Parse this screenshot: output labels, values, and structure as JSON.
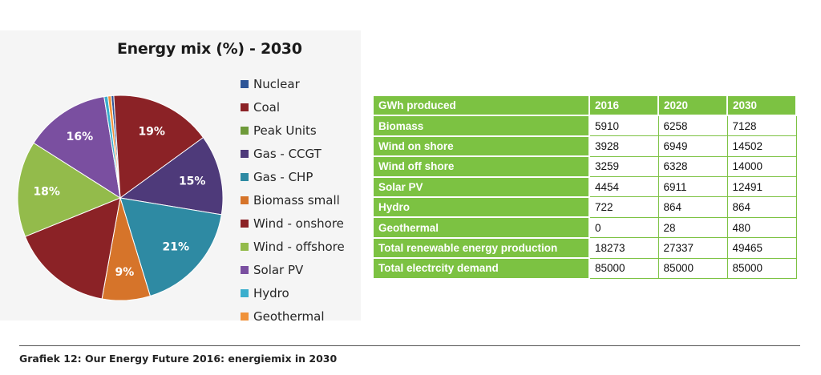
{
  "chart_data": [
    {
      "type": "pie",
      "title": "Energy mix (%) - 2030",
      "series": [
        {
          "name": "Nuclear",
          "value": 0.5,
          "color": "#2e5597",
          "label": ""
        },
        {
          "name": "Coal",
          "value": 19,
          "color": "#8b2226",
          "label": "19%"
        },
        {
          "name": "Peak Units",
          "value": 0,
          "color": "#6e9a3a",
          "label": ""
        },
        {
          "name": "Gas - CCGT",
          "value": 15,
          "color": "#4e3a7a",
          "label": "15%"
        },
        {
          "name": "Gas - CHP",
          "value": 21,
          "color": "#2e8aa3",
          "label": "21%"
        },
        {
          "name": "Biomass small",
          "value": 9,
          "color": "#d6742a",
          "label": "9%"
        },
        {
          "name": "Wind - onshore",
          "value": 19,
          "color": "#8b2226",
          "label": ""
        },
        {
          "name": "Wind - offshore",
          "value": 18,
          "color": "#93bb4b",
          "label": "18%"
        },
        {
          "name": "Solar PV",
          "value": 16,
          "color": "#7a4fa0",
          "label": "16%"
        },
        {
          "name": "Hydro",
          "value": 0.7,
          "color": "#3aaecd",
          "label": ""
        },
        {
          "name": "Geothermal",
          "value": 0.6,
          "color": "#f0923a",
          "label": ""
        }
      ],
      "legend_placement": "right"
    },
    {
      "type": "table",
      "columns": [
        "GWh produced",
        "2016",
        "2020",
        "2030"
      ],
      "rows": [
        [
          "Biomass",
          "5910",
          "6258",
          "7128"
        ],
        [
          "Wind on shore",
          "3928",
          "6949",
          "14502"
        ],
        [
          "Wind off shore",
          "3259",
          "6328",
          "14000"
        ],
        [
          "Solar PV",
          "4454",
          "6911",
          "12491"
        ],
        [
          "Hydro",
          "722",
          "864",
          "864"
        ],
        [
          "Geothermal",
          "0",
          "28",
          "480"
        ],
        [
          "Total renewable energy production",
          "18273",
          "27337",
          "49465"
        ],
        [
          "Total electrcity demand",
          "85000",
          "85000",
          "85000"
        ]
      ]
    }
  ],
  "pie_chart": {
    "title": "Energy mix (%) - 2030",
    "legend": [
      "Nuclear",
      "Coal",
      "Peak Units",
      "Gas - CCGT",
      "Gas - CHP",
      "Biomass small",
      "Wind - onshore",
      "Wind - offshore",
      "Solar PV",
      "Hydro",
      "Geothermal"
    ],
    "legend_colors": [
      "#2e5597",
      "#8b2226",
      "#6e9a3a",
      "#4e3a7a",
      "#2e8aa3",
      "#d6742a",
      "#8b2226",
      "#93bb4b",
      "#7a4fa0",
      "#3aaecd",
      "#f0923a"
    ]
  },
  "table": {
    "header": [
      "GWh produced",
      "2016",
      "2020",
      "2030"
    ],
    "rows": [
      [
        "Biomass",
        "5910",
        "6258",
        "7128"
      ],
      [
        "Wind on shore",
        "3928",
        "6949",
        "14502"
      ],
      [
        "Wind off shore",
        "3259",
        "6328",
        "14000"
      ],
      [
        "Solar PV",
        "4454",
        "6911",
        "12491"
      ],
      [
        "Hydro",
        "722",
        "864",
        "864"
      ],
      [
        "Geothermal",
        "0",
        "28",
        "480"
      ],
      [
        "Total renewable energy production",
        "18273",
        "27337",
        "49465"
      ],
      [
        "Total electrcity demand",
        "85000",
        "85000",
        "85000"
      ]
    ],
    "header_color": "#7cc242"
  },
  "caption": "Grafiek 12: Our Energy Future 2016: energiemix in 2030"
}
